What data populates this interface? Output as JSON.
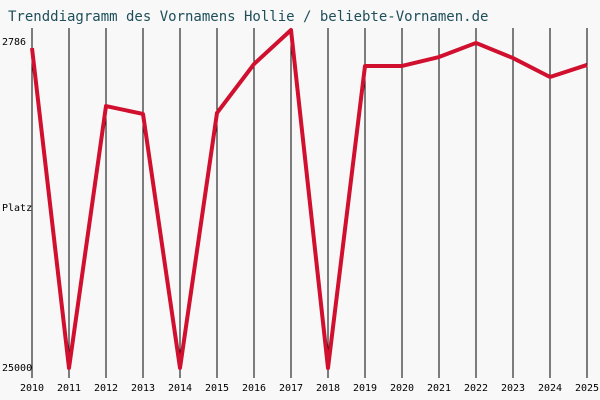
{
  "chart_data": {
    "type": "line",
    "title": "Trenddiagramm des Vornamens Hollie / beliebte-Vornamen.de",
    "y_label": "Platz",
    "x": [
      2010,
      2011,
      2012,
      2013,
      2014,
      2015,
      2016,
      2017,
      2018,
      2019,
      2020,
      2021,
      2022,
      2023,
      2024,
      2025
    ],
    "xlim": [
      2010,
      2025
    ],
    "series": [
      {
        "color": "#d0102e",
        "values": [
          3200,
          25000,
          7150,
          7690,
          25000,
          7620,
          4290,
          1970,
          25000,
          4420,
          4420,
          3810,
          2850,
          3880,
          5170,
          4350
        ]
      }
    ],
    "ylim": [
      2786,
      25000
    ],
    "yticks": [
      2786,
      25000
    ],
    "y_inverted": true,
    "grid": true
  }
}
